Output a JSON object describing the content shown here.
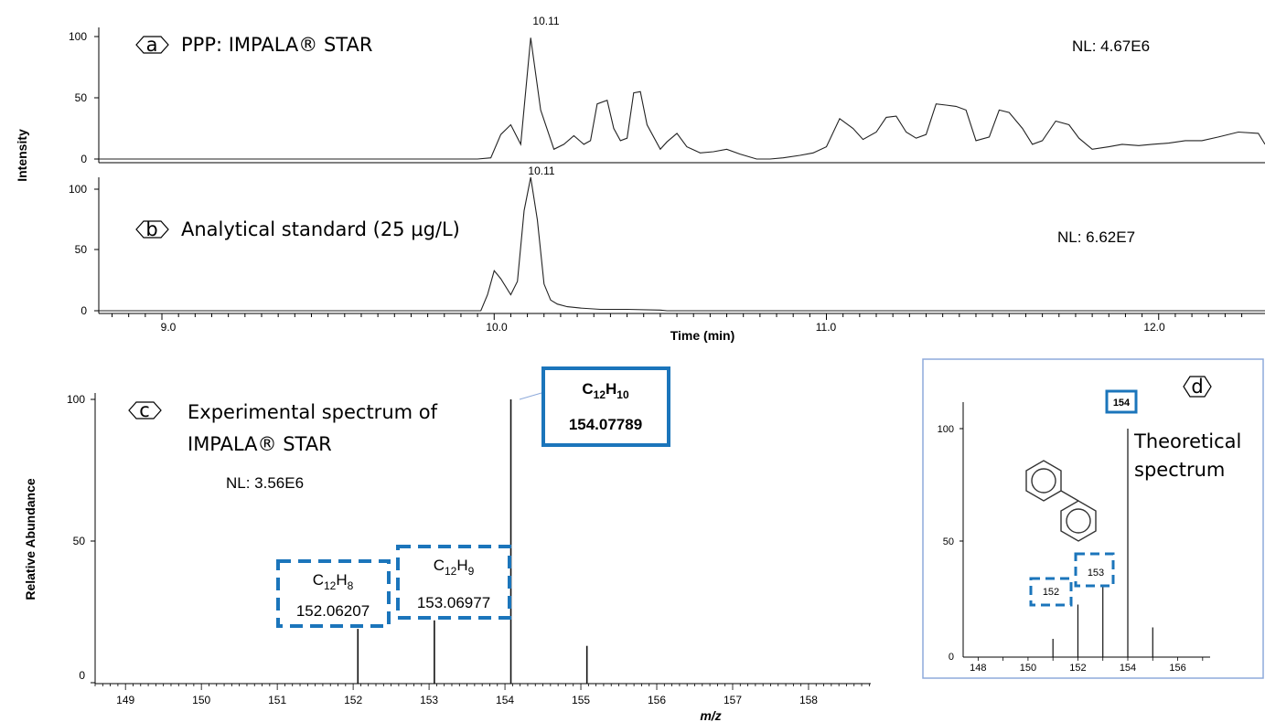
{
  "chart_data": [
    {
      "panel": "a",
      "type": "line",
      "title": "PPP: IMPALA® STAR",
      "panel_label": "a",
      "nl_label": "NL: 4.67E6",
      "peak_label": "10.11",
      "xlabel": "Time (min)",
      "ylabel": "Intensity",
      "xlim": [
        8.81,
        12.32
      ],
      "ylim": [
        0,
        100
      ],
      "yticks": [
        "100",
        "50",
        "0"
      ],
      "series": [
        {
          "x": [
            8.81,
            9.95,
            9.99,
            10.02,
            10.05,
            10.08,
            10.11,
            10.14,
            10.18,
            10.21,
            10.24,
            10.27,
            10.29,
            10.31,
            10.34,
            10.36,
            10.38,
            10.4,
            10.42,
            10.44,
            10.46,
            10.5,
            10.52,
            10.55,
            10.58,
            10.62,
            10.66,
            10.7,
            10.74,
            10.79,
            10.83,
            10.87,
            10.92,
            10.96,
            11.0,
            11.04,
            11.08,
            11.11,
            11.15,
            11.18,
            11.21,
            11.24,
            11.27,
            11.3,
            11.33,
            11.36,
            11.39,
            11.42,
            11.45,
            11.49,
            11.52,
            11.55,
            11.59,
            11.62,
            11.65,
            11.69,
            11.73,
            11.76,
            11.8,
            11.85,
            11.89,
            11.94,
            11.98,
            12.03,
            12.08,
            12.13,
            12.18,
            12.24,
            12.3,
            12.32
          ],
          "y": [
            0,
            0,
            1,
            20,
            28,
            12,
            99,
            40,
            8,
            12,
            19,
            12,
            15,
            45,
            48,
            25,
            15,
            17,
            54,
            55,
            28,
            8,
            14,
            21,
            10,
            5,
            6,
            8,
            4,
            0,
            0,
            1,
            3,
            5,
            10,
            33,
            25,
            16,
            22,
            34,
            35,
            22,
            17,
            20,
            45,
            44,
            43,
            40,
            15,
            18,
            40,
            38,
            25,
            12,
            15,
            31,
            28,
            17,
            8,
            10,
            12,
            11,
            12,
            13,
            15,
            15,
            18,
            22,
            21,
            12
          ]
        }
      ]
    },
    {
      "panel": "b",
      "type": "line",
      "title": "Analytical standard (25 µg/L)",
      "panel_label": "b",
      "nl_label": "NL: 6.62E7",
      "peak_label": "10.11",
      "xlabel": "Time (min)",
      "xlim": [
        8.81,
        12.32
      ],
      "ylim": [
        0,
        100
      ],
      "yticks": [
        "100",
        "50",
        "0"
      ],
      "xticks": [
        "9.0",
        "10.0",
        "11.0",
        "12.0"
      ],
      "xtick_values": [
        9.0,
        10.0,
        11.0,
        12.0
      ],
      "series": [
        {
          "x": [
            8.81,
            9.96,
            9.98,
            10.0,
            10.02,
            10.05,
            10.07,
            10.09,
            10.11,
            10.13,
            10.15,
            10.17,
            10.19,
            10.22,
            10.26,
            10.32,
            10.4,
            10.5,
            10.52,
            12.32
          ],
          "y": [
            0,
            0,
            12,
            30,
            24,
            12,
            22,
            75,
            100,
            68,
            20,
            8,
            5,
            3,
            2,
            1,
            1,
            0.5,
            0,
            0
          ]
        }
      ]
    },
    {
      "panel": "c",
      "type": "bar",
      "title_line1": "Experimental spectrum of",
      "title_line2": "IMPALA® STAR",
      "panel_label": "c",
      "nl_label": "NL: 3.56E6",
      "xlabel": "m/z",
      "ylabel": "Relative Abundance",
      "xlim": [
        148.6,
        158.82
      ],
      "ylim": [
        0,
        100
      ],
      "yticks": [
        "100",
        "50",
        "0"
      ],
      "xticks": [
        "149",
        "150",
        "151",
        "152",
        "153",
        "154",
        "155",
        "156",
        "157",
        "158"
      ],
      "xtick_values": [
        149,
        150,
        151,
        152,
        153,
        154,
        155,
        156,
        157,
        158
      ],
      "peaks": [
        {
          "mz": 152.06207,
          "intensity": 19
        },
        {
          "mz": 153.06977,
          "intensity": 22
        },
        {
          "mz": 154.07789,
          "intensity": 100
        },
        {
          "mz": 155.08,
          "intensity": 13
        }
      ],
      "annotations": [
        {
          "formula_main": "C",
          "sub1": "12",
          "h": "H",
          "sub2": "8",
          "mass": "152.06207"
        },
        {
          "formula_main": "C",
          "sub1": "12",
          "h": "H",
          "sub2": "9",
          "mass": "153.06977"
        },
        {
          "formula_main": "C",
          "sub1": "12",
          "h": "H",
          "sub2": "10",
          "mass": "154.07789"
        }
      ]
    },
    {
      "panel": "d",
      "type": "bar",
      "title_line1": "Theoretical",
      "title_line2": "spectrum",
      "panel_label": "d",
      "xlim": [
        147.4,
        157.3
      ],
      "ylim": [
        0,
        100
      ],
      "yticks": [
        "100",
        "50",
        "0"
      ],
      "xticks": [
        "148",
        "150",
        "152",
        "154",
        "156"
      ],
      "xtick_values": [
        148,
        150,
        152,
        154,
        156
      ],
      "peaks": [
        {
          "mz": 151,
          "intensity": 8
        },
        {
          "mz": 152,
          "intensity": 23
        },
        {
          "mz": 153,
          "intensity": 31
        },
        {
          "mz": 154,
          "intensity": 100
        },
        {
          "mz": 155,
          "intensity": 13
        }
      ],
      "peak_labels": [
        "152",
        "153",
        "154"
      ],
      "structure": "biphenyl-icon"
    }
  ],
  "colors": {
    "annotation_blue": "#1b75bb",
    "frame_blue": "#8eaadb",
    "trace": "#222222"
  }
}
